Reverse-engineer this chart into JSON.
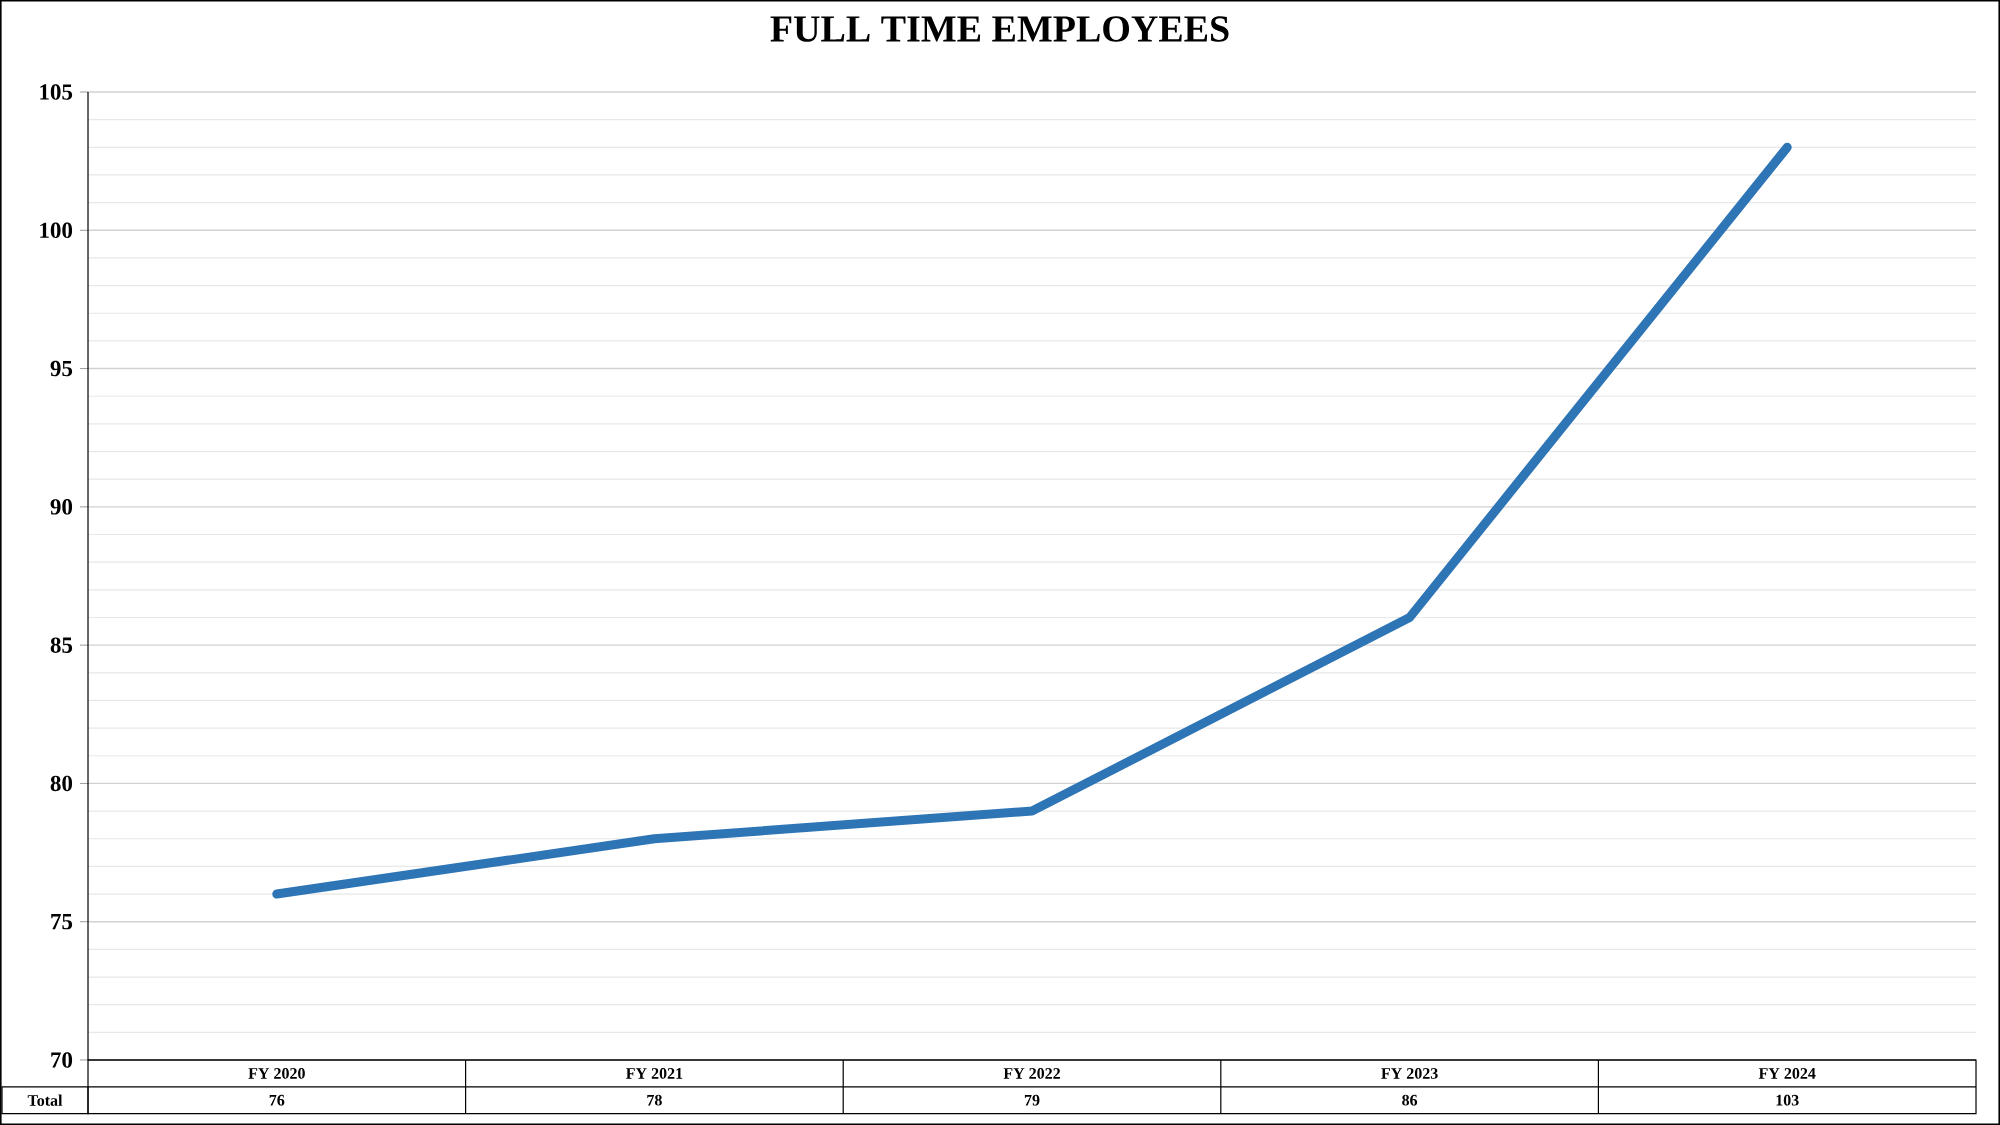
{
  "chart_data": {
    "type": "line",
    "title": "FULL TIME EMPLOYEES",
    "categories": [
      "FY 2020",
      "FY 2021",
      "FY 2022",
      "FY 2023",
      "FY 2024"
    ],
    "series": [
      {
        "name": "Total",
        "color": "#2e75b6",
        "values": [
          76,
          78,
          79,
          86,
          103
        ]
      }
    ],
    "ylim": [
      70,
      105
    ],
    "yticks": [
      70,
      75,
      80,
      85,
      90,
      95,
      100,
      105
    ],
    "grid": true,
    "data_labels": true,
    "line_style": "solid"
  }
}
